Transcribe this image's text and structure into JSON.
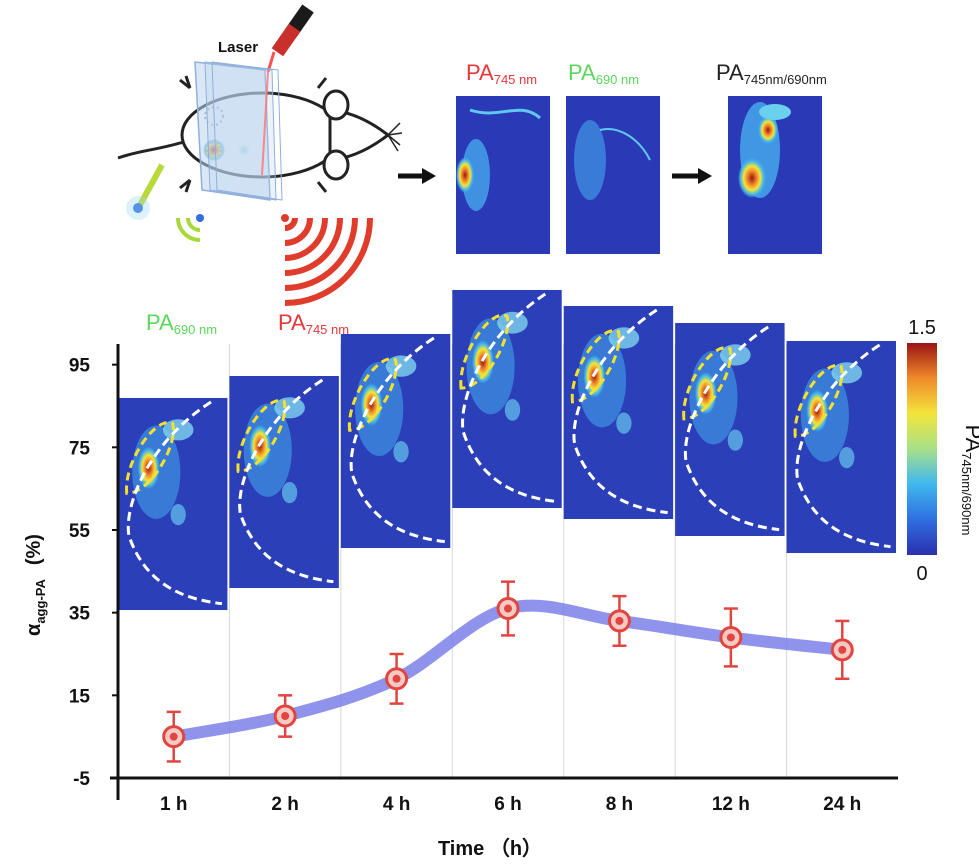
{
  "schematic": {
    "laser_label": "Laser",
    "wavelength_labels": {
      "pa745": {
        "main": "PA",
        "sub": "745 nm",
        "color": "#e8373a"
      },
      "pa690": {
        "main": "PA",
        "sub": "690 nm",
        "color": "#5cd65c"
      },
      "ratio": {
        "main": "PA",
        "sub": "745nm/690nm",
        "color": "#222222"
      }
    },
    "legend_labels": {
      "pa690": {
        "main": "PA",
        "sub": "690 nm",
        "color": "#5cd65c"
      },
      "pa745": {
        "main": "PA",
        "sub": "745 nm",
        "color": "#e8373a"
      }
    }
  },
  "colorbar": {
    "max_label": "1.5",
    "min_label": "0",
    "title_main": "PA",
    "title_sub": "745nm/690nm",
    "colors": [
      "#2b2fb0",
      "#2f6fe0",
      "#3fb8ef",
      "#a7e08a",
      "#f3e53a",
      "#f08a2a",
      "#9b1414"
    ]
  },
  "chart_data": {
    "type": "line",
    "categories": [
      "1 h",
      "2 h",
      "4 h",
      "6 h",
      "8 h",
      "12 h",
      "24 h"
    ],
    "series": [
      {
        "values": [
          5,
          10,
          19,
          36,
          33,
          29,
          26
        ],
        "error": [
          6,
          5,
          6,
          6.5,
          6,
          7,
          7
        ],
        "line_color": "#7b80e8",
        "marker_color": "#e0463f"
      }
    ],
    "xlabel": "Time （h）",
    "ylabel_main": "α",
    "ylabel_sub": "agg-PA",
    "ylabel_unit": "(%)",
    "yticks": [
      -5,
      15,
      35,
      55,
      75,
      95
    ],
    "ylim": [
      -5,
      100
    ]
  }
}
